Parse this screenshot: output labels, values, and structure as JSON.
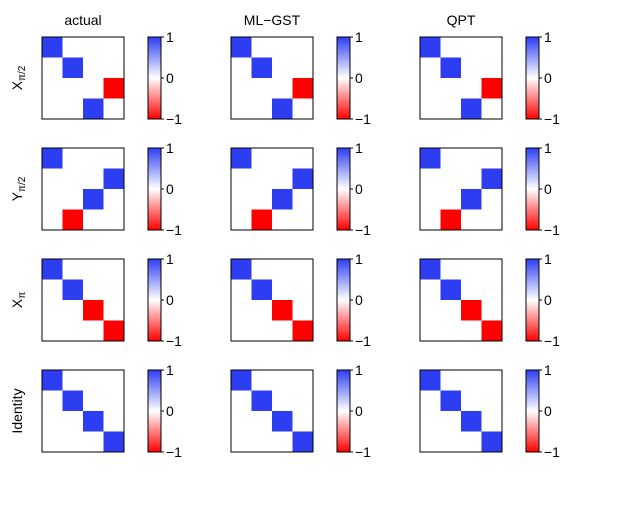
{
  "chart_data": {
    "type": "heatmap",
    "description_grid": "4 rows (gates) x 3 columns (methods); each panel is a 4x4 matrix with a colorbar",
    "column_titles": [
      "actual",
      "ML−GST",
      "QPT"
    ],
    "row_labels": [
      {
        "base": "X",
        "sub": "π/2"
      },
      {
        "base": "Y",
        "sub": "π/2"
      },
      {
        "base": "X",
        "sub": "π"
      },
      {
        "base": "Identity",
        "sub": ""
      }
    ],
    "colorbar": {
      "ticks": [
        "1",
        "0",
        "−1"
      ],
      "tick_values": [
        1,
        0,
        -1
      ],
      "range": [
        -1,
        1
      ],
      "colors": {
        "positive": "#2c3df2",
        "zero": "#ffffff",
        "negative": "#ff0000"
      }
    },
    "matrices": [
      {
        "gate": "X_pi/2",
        "actual": [
          [
            1,
            0,
            0,
            0
          ],
          [
            0,
            1,
            0,
            0
          ],
          [
            0,
            0,
            0,
            -1
          ],
          [
            0,
            0,
            1,
            0
          ]
        ],
        "ML-GST": [
          [
            1,
            0,
            0,
            0
          ],
          [
            0,
            1,
            0,
            0
          ],
          [
            0,
            0,
            0,
            -1
          ],
          [
            0,
            0,
            1,
            0
          ]
        ],
        "QPT": [
          [
            1,
            0,
            0,
            0
          ],
          [
            0,
            1,
            0,
            0
          ],
          [
            0,
            0,
            0,
            -1
          ],
          [
            0,
            0,
            1,
            0
          ]
        ]
      },
      {
        "gate": "Y_pi/2",
        "actual": [
          [
            1,
            0,
            0,
            0
          ],
          [
            0,
            0,
            0,
            1
          ],
          [
            0,
            0,
            1,
            0
          ],
          [
            0,
            -1,
            0,
            0
          ]
        ],
        "ML-GST": [
          [
            1,
            0,
            0,
            0
          ],
          [
            0,
            0,
            0,
            1
          ],
          [
            0,
            0,
            1,
            0
          ],
          [
            0,
            -1,
            0,
            0
          ]
        ],
        "QPT": [
          [
            1,
            0,
            0,
            0
          ],
          [
            0,
            0,
            0,
            1
          ],
          [
            0,
            0,
            1,
            0
          ],
          [
            0,
            -1,
            0,
            0
          ]
        ]
      },
      {
        "gate": "X_pi",
        "actual": [
          [
            1,
            0,
            0,
            0
          ],
          [
            0,
            1,
            0,
            0
          ],
          [
            0,
            0,
            -1,
            0
          ],
          [
            0,
            0,
            0,
            -1
          ]
        ],
        "ML-GST": [
          [
            1,
            0,
            0,
            0
          ],
          [
            0,
            1,
            0,
            0
          ],
          [
            0,
            0,
            -1,
            0
          ],
          [
            0,
            0,
            0,
            -1
          ]
        ],
        "QPT": [
          [
            1,
            0,
            0,
            0
          ],
          [
            0,
            1,
            0,
            0
          ],
          [
            0,
            0,
            -1,
            0
          ],
          [
            0,
            0,
            0,
            -1
          ]
        ]
      },
      {
        "gate": "Identity",
        "actual": [
          [
            1,
            0,
            0,
            0
          ],
          [
            0,
            1,
            0,
            0
          ],
          [
            0,
            0,
            1,
            0
          ],
          [
            0,
            0,
            0,
            1
          ]
        ],
        "ML-GST": [
          [
            1,
            0,
            0,
            0
          ],
          [
            0,
            1,
            0,
            0
          ],
          [
            0,
            0,
            1,
            0
          ],
          [
            0,
            0,
            0,
            1
          ]
        ],
        "QPT": [
          [
            1,
            0,
            0,
            0
          ],
          [
            0,
            1,
            0,
            0
          ],
          [
            0,
            0,
            1,
            0
          ],
          [
            0,
            0,
            0,
            1
          ]
        ]
      }
    ]
  }
}
